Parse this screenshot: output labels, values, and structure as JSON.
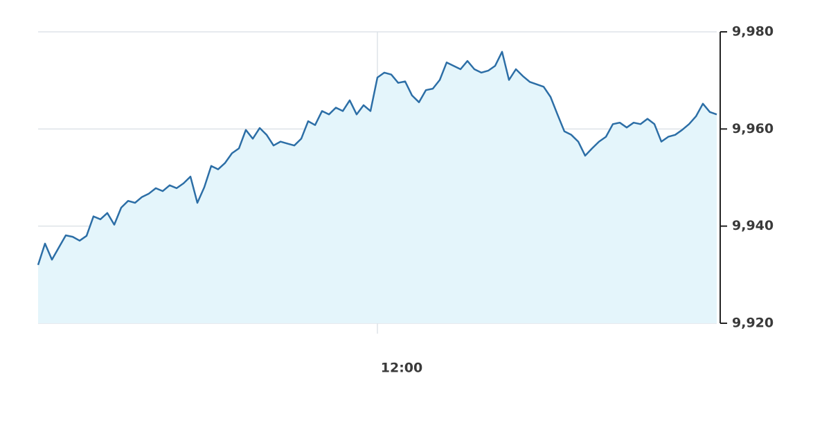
{
  "chart_data": {
    "type": "area",
    "categories": [
      null,
      null,
      null,
      null,
      null,
      null,
      null,
      null,
      null,
      null,
      null,
      null,
      null,
      null,
      null,
      null,
      null,
      null,
      null,
      null,
      null,
      null,
      null,
      null,
      null,
      null,
      null,
      null,
      null,
      null,
      null,
      null,
      null,
      null,
      null,
      null,
      null,
      null,
      null,
      null,
      null,
      null,
      null,
      null,
      null,
      null,
      null,
      null,
      null,
      "12:00",
      null,
      null,
      null,
      null,
      null,
      null,
      null,
      null,
      null,
      null,
      null,
      null,
      null,
      null,
      null,
      null,
      null,
      null,
      null,
      null,
      null,
      null,
      null,
      null,
      null,
      null,
      null,
      null,
      null,
      null,
      null,
      null,
      null,
      null,
      null,
      null,
      null,
      null,
      null,
      null,
      null,
      null,
      null,
      null,
      null,
      null,
      null,
      null,
      null
    ],
    "values": [
      9932.0,
      9936.4,
      9933.1,
      9935.6,
      9938.1,
      9937.8,
      9937.0,
      9938.0,
      9942.0,
      9941.4,
      9942.7,
      9940.3,
      9943.8,
      9945.2,
      9944.8,
      9946.0,
      9946.7,
      9947.8,
      9947.2,
      9948.4,
      9947.8,
      9948.8,
      9950.2,
      9944.8,
      9948.0,
      9952.4,
      9951.7,
      9953.0,
      9955.0,
      9956.0,
      9959.8,
      9958.0,
      9960.2,
      9958.8,
      9956.6,
      9957.4,
      9957.0,
      9956.6,
      9958.0,
      9961.6,
      9960.8,
      9963.7,
      9963.0,
      9964.4,
      9963.7,
      9965.9,
      9963.0,
      9964.9,
      9963.7,
      9970.6,
      9971.6,
      9971.2,
      9969.5,
      9969.8,
      9966.9,
      9965.5,
      9968.0,
      9968.3,
      9970.1,
      9973.7,
      9973.0,
      9972.3,
      9974.0,
      9972.3,
      9971.6,
      9972.0,
      9973.0,
      9975.9,
      9970.1,
      9972.3,
      9970.9,
      9969.7,
      9969.2,
      9968.7,
      9966.6,
      9963.0,
      9959.5,
      9958.8,
      9957.4,
      9954.5,
      9956.0,
      9957.4,
      9958.4,
      9961.0,
      9961.3,
      9960.3,
      9961.3,
      9961.0,
      9962.1,
      9961.0,
      9957.4,
      9958.4,
      9958.8,
      9959.8,
      9961.0,
      9962.6,
      9965.2,
      9963.5,
      9963.0
    ],
    "line_color": "#2c6ea6",
    "fill_color": "#e4f5fb",
    "ylim": [
      9920,
      9980
    ],
    "yticks": [
      {
        "value": 9920,
        "label": "9,920"
      },
      {
        "value": 9940,
        "label": "9,940"
      },
      {
        "value": 9960,
        "label": "9,960"
      },
      {
        "value": 9980,
        "label": "9,980"
      }
    ],
    "grid": true,
    "y_axis_side": "right"
  }
}
